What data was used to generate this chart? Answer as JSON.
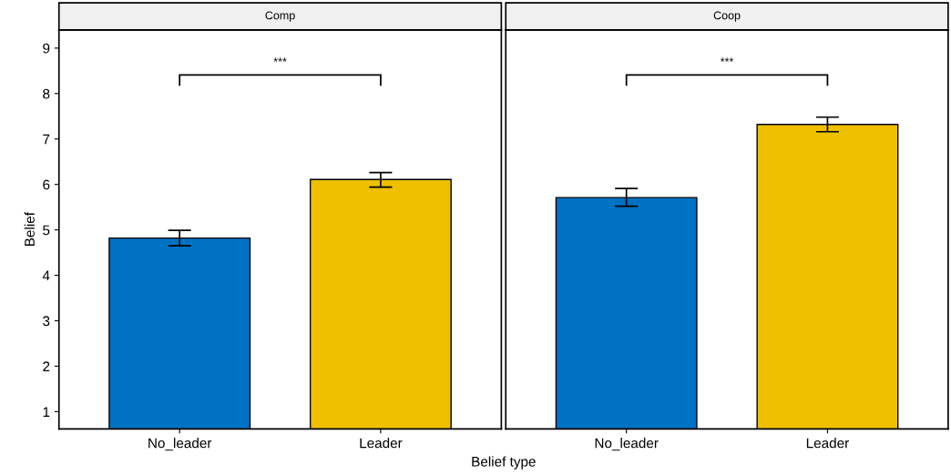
{
  "chart_data": [
    {
      "type": "bar",
      "title": "Comp",
      "xlabel": "Belief type",
      "ylabel": "Belief",
      "categories": [
        "No_leader",
        "Leader"
      ],
      "values": [
        4.82,
        6.11
      ],
      "colors": [
        "#0072c3",
        "#efc000"
      ],
      "errors": [
        [
          4.65,
          4.99
        ],
        [
          5.94,
          6.26
        ]
      ],
      "ylim": [
        0.62,
        9.4
      ],
      "yticks": [
        1,
        2,
        3,
        4,
        5,
        6,
        7,
        8,
        9
      ],
      "grid": false,
      "legend": false,
      "annotations": [
        "***"
      ]
    },
    {
      "type": "bar",
      "title": "Coop",
      "categories": [
        "No_leader",
        "Leader"
      ],
      "values": [
        5.71,
        7.32
      ],
      "colors": [
        "#0072c3",
        "#efc000"
      ],
      "errors": [
        [
          5.52,
          5.91
        ],
        [
          7.16,
          7.48
        ]
      ],
      "ylim": [
        0.62,
        9.4
      ],
      "yticks": [
        1,
        2,
        3,
        4,
        5,
        6,
        7,
        8,
        9
      ],
      "tick_labels": "x",
      "grid": false,
      "legend": false,
      "annotations": [
        "***"
      ]
    }
  ]
}
